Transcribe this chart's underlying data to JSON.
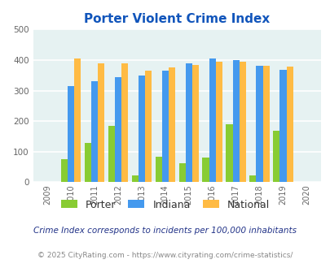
{
  "title": "Porter Violent Crime Index",
  "years": [
    2009,
    2010,
    2011,
    2012,
    2013,
    2014,
    2015,
    2016,
    2017,
    2018,
    2019,
    2020
  ],
  "porter": [
    null,
    75,
    128,
    185,
    22,
    83,
    63,
    82,
    190,
    22,
    168,
    null
  ],
  "indiana": [
    null,
    315,
    330,
    345,
    350,
    365,
    388,
    405,
    400,
    382,
    368,
    null
  ],
  "national": [
    null,
    406,
    388,
    388,
    366,
    375,
    383,
    395,
    395,
    380,
    379,
    null
  ],
  "porter_color": "#88cc33",
  "indiana_color": "#4499ee",
  "national_color": "#ffbb44",
  "bg_color": "#e6f2f2",
  "title_color": "#1155bb",
  "ylim": [
    0,
    500
  ],
  "legend_labels": [
    "Porter",
    "Indiana",
    "National"
  ],
  "footnote1": "Crime Index corresponds to incidents per 100,000 inhabitants",
  "footnote2": "© 2025 CityRating.com - https://www.cityrating.com/crime-statistics/",
  "footnote1_color": "#223388",
  "footnote2_color": "#888888",
  "grid_color": "#ffffff",
  "tick_color": "#666666"
}
